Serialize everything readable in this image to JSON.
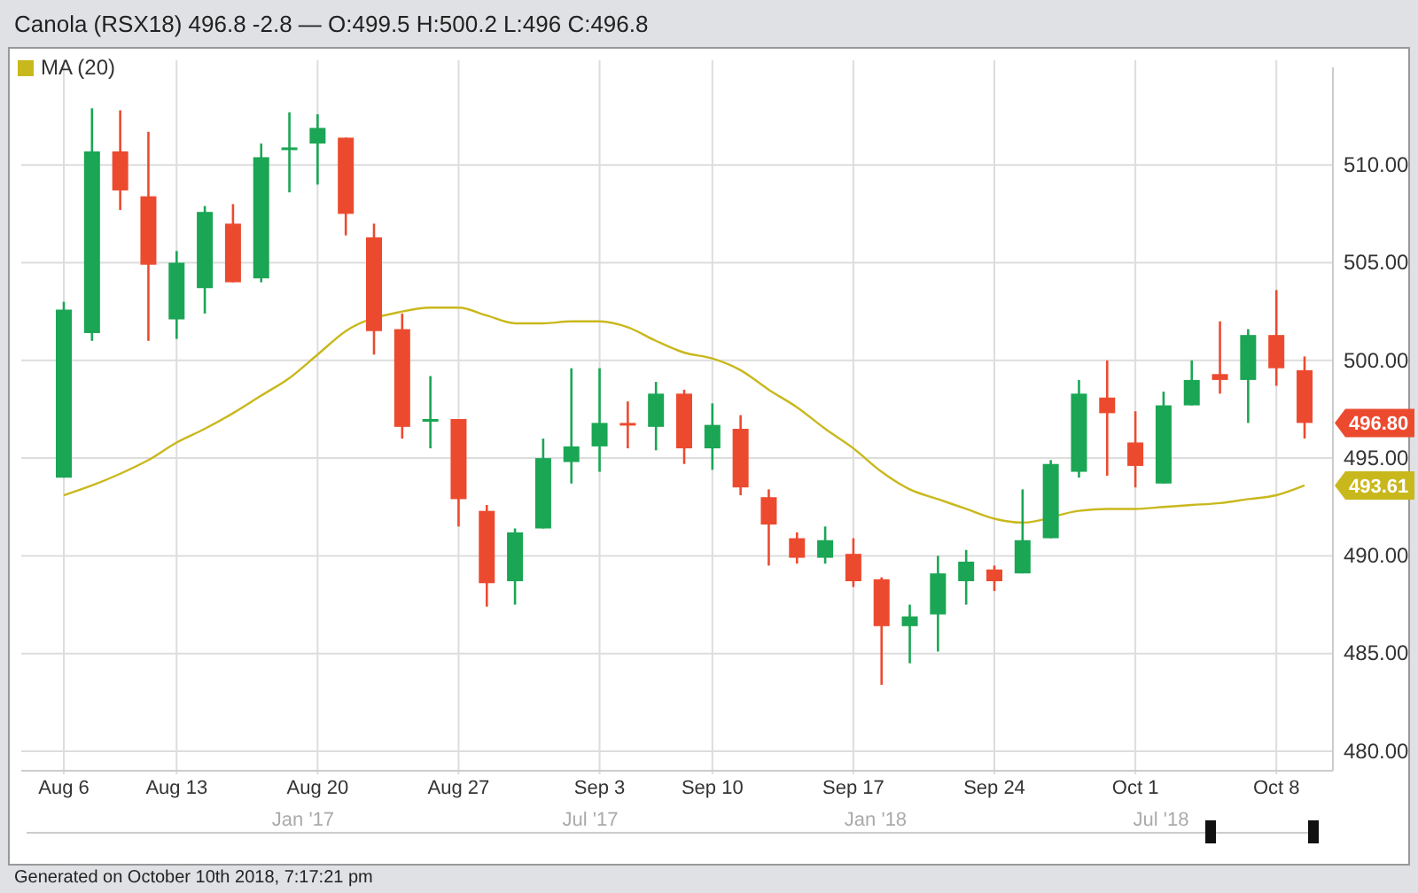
{
  "chart_data": {
    "type": "candlestick",
    "title": "Canola (RSX18) 496.8 -2.8 — O:499.5 H:500.2 L:496 C:496.8",
    "categories": [
      "Aug 6",
      null,
      null,
      null,
      "Aug 13",
      null,
      null,
      null,
      null,
      "Aug 20",
      null,
      null,
      null,
      null,
      "Aug 27",
      null,
      null,
      null,
      null,
      "Sep 3",
      null,
      null,
      null,
      "Sep 10",
      null,
      null,
      null,
      null,
      "Sep 17",
      null,
      null,
      null,
      null,
      "Sep 24",
      null,
      null,
      null,
      null,
      "Oct 1",
      null,
      null,
      null,
      null,
      "Oct 8",
      null
    ],
    "ohlc": [
      [
        494.0,
        503.0,
        494.0,
        502.6
      ],
      [
        501.4,
        512.9,
        501.0,
        510.7
      ],
      [
        510.7,
        512.8,
        507.7,
        508.7
      ],
      [
        508.4,
        511.7,
        501.0,
        504.9
      ],
      [
        502.1,
        505.6,
        501.1,
        505.0
      ],
      [
        503.7,
        507.9,
        502.4,
        507.6
      ],
      [
        507.0,
        508.0,
        504.0,
        504.0
      ],
      [
        504.2,
        511.1,
        504.0,
        510.4
      ],
      [
        510.8,
        512.7,
        508.6,
        510.9
      ],
      [
        511.1,
        512.6,
        509.0,
        511.9
      ],
      [
        511.4,
        511.4,
        506.4,
        507.5
      ],
      [
        506.3,
        507.0,
        500.3,
        501.5
      ],
      [
        501.6,
        502.4,
        496.0,
        496.6
      ],
      [
        496.9,
        499.2,
        495.5,
        497.0
      ],
      [
        497.0,
        497.0,
        491.5,
        492.9
      ],
      [
        492.3,
        492.6,
        487.4,
        488.6
      ],
      [
        488.7,
        491.4,
        487.5,
        491.2
      ],
      [
        491.4,
        496.0,
        491.4,
        495.0
      ],
      [
        494.8,
        499.6,
        493.7,
        495.6
      ],
      [
        495.6,
        499.6,
        494.3,
        496.8
      ],
      [
        496.8,
        497.9,
        495.5,
        496.7
      ],
      [
        496.6,
        498.9,
        495.4,
        498.3
      ],
      [
        498.3,
        498.5,
        494.7,
        495.5
      ],
      [
        495.5,
        497.8,
        494.4,
        496.7
      ],
      [
        496.5,
        497.2,
        493.1,
        493.5
      ],
      [
        493.0,
        493.4,
        489.5,
        491.6
      ],
      [
        490.9,
        491.2,
        489.6,
        489.9
      ],
      [
        489.9,
        491.5,
        489.6,
        490.8
      ],
      [
        490.1,
        490.9,
        488.4,
        488.7
      ],
      [
        488.8,
        488.9,
        483.4,
        486.4
      ],
      [
        486.4,
        487.5,
        484.5,
        486.9
      ],
      [
        487.0,
        490.0,
        485.1,
        489.1
      ],
      [
        488.7,
        490.3,
        487.5,
        489.7
      ],
      [
        489.3,
        489.5,
        488.2,
        488.7
      ],
      [
        489.1,
        493.4,
        489.1,
        490.8
      ],
      [
        490.9,
        494.9,
        490.9,
        494.7
      ],
      [
        494.3,
        499.0,
        494.0,
        498.3
      ],
      [
        498.1,
        500.0,
        494.1,
        497.3
      ],
      [
        495.8,
        497.4,
        493.5,
        494.6
      ],
      [
        493.7,
        498.4,
        493.7,
        497.7
      ],
      [
        497.7,
        500.0,
        497.7,
        499.0
      ],
      [
        499.3,
        502.0,
        498.3,
        499.0
      ],
      [
        499.0,
        501.6,
        496.8,
        501.3
      ],
      [
        501.3,
        503.6,
        498.7,
        499.6
      ],
      [
        499.5,
        500.2,
        496.0,
        496.8
      ]
    ],
    "colors": [
      "#1aa654",
      "#1aa654",
      "#ec4a2f",
      "#ec4a2f",
      "#1aa654",
      "#1aa654",
      "#ec4a2f",
      "#1aa654",
      "#1aa654",
      "#1aa654",
      "#ec4a2f",
      "#ec4a2f",
      "#ec4a2f",
      "#1aa654",
      "#ec4a2f",
      "#ec4a2f",
      "#1aa654",
      "#1aa654",
      "#1aa654",
      "#1aa654",
      "#ec4a2f",
      "#1aa654",
      "#ec4a2f",
      "#1aa654",
      "#ec4a2f",
      "#ec4a2f",
      "#ec4a2f",
      "#1aa654",
      "#ec4a2f",
      "#ec4a2f",
      "#1aa654",
      "#1aa654",
      "#1aa654",
      "#ec4a2f",
      "#1aa654",
      "#1aa654",
      "#1aa654",
      "#ec4a2f",
      "#ec4a2f",
      "#1aa654",
      "#1aa654",
      "#ec4a2f",
      "#1aa654",
      "#ec4a2f",
      "#ec4a2f"
    ],
    "series": [
      {
        "name": "MA (20)",
        "type": "line",
        "color": "#c9b81c",
        "values": [
          493.1,
          493.6,
          494.2,
          494.9,
          495.8,
          496.5,
          497.3,
          498.2,
          499.1,
          500.3,
          501.5,
          null,
          502.5,
          502.7,
          502.7,
          502.3,
          501.9,
          501.9,
          502.0,
          502.0,
          501.7,
          501.0,
          500.4,
          500.1,
          499.5,
          498.5,
          497.6,
          496.5,
          495.5,
          494.3,
          493.4,
          492.9,
          492.4,
          491.9,
          491.7,
          null,
          492.3,
          492.4,
          492.4,
          492.5,
          492.6,
          492.7,
          492.9,
          493.1,
          493.6
        ]
      }
    ],
    "ylim": [
      479,
      515
    ],
    "yticks": [
      {
        "value": 480,
        "label": "480.00"
      },
      {
        "value": 485,
        "label": "485.00"
      },
      {
        "value": 490,
        "label": "490.00"
      },
      {
        "value": 495,
        "label": "495.00"
      },
      {
        "value": 500,
        "label": "500.00"
      },
      {
        "value": 505,
        "label": "505.00"
      },
      {
        "value": 510,
        "label": "510.00"
      }
    ],
    "grid": true,
    "legend": "top left",
    "annotations": [
      "496.80",
      "493.61",
      "Jan '17",
      "Jul '17",
      "Jan '18",
      "Jul '18",
      "Generated on October 10th 2018, 7:17:21 pm"
    ]
  }
}
